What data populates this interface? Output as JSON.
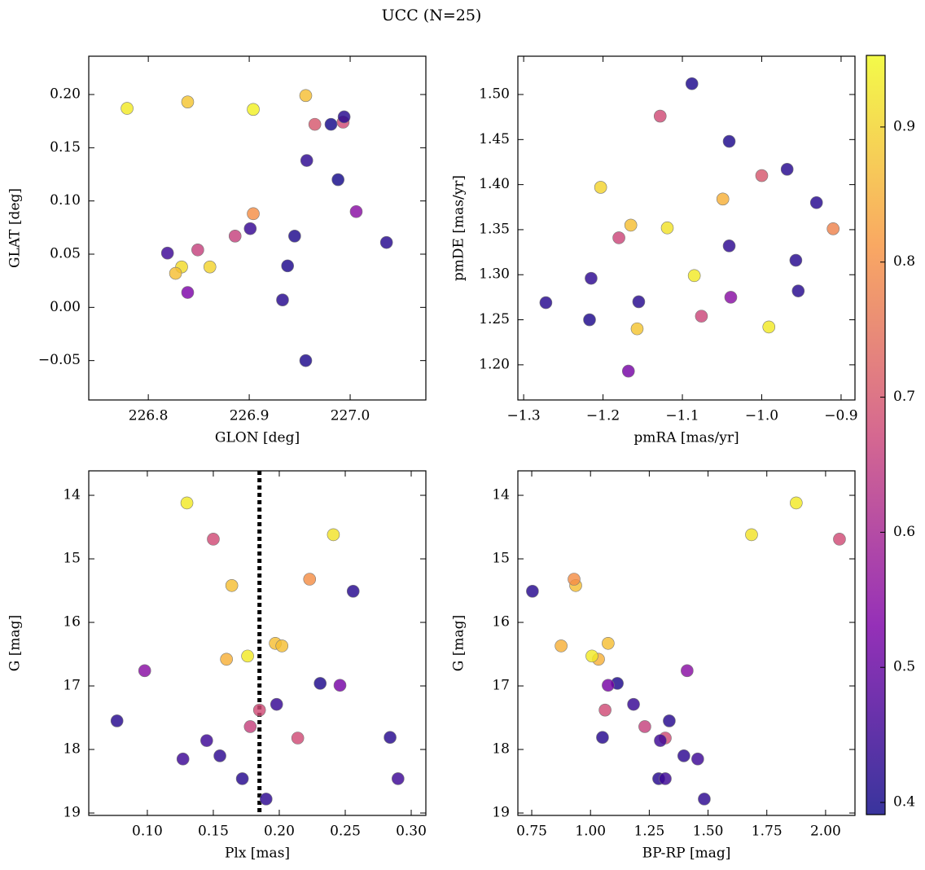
{
  "title": "UCC (N=25)",
  "cmap": "plasma",
  "colorbar": {
    "lim": [
      0.391,
      0.953
    ],
    "ticks": [
      0.4,
      0.5,
      0.6,
      0.7,
      0.8,
      0.9
    ]
  },
  "chart_data": [
    {
      "type": "scatter",
      "xlabel": "GLON [deg]",
      "ylabel": "GLAT [deg]",
      "xlim": [
        226.741,
        227.075
      ],
      "ylim": [
        -0.087,
        0.236
      ],
      "xticks": [
        226.8,
        226.9,
        {
          "value": 227.0,
          "label": "227.0"
        }
      ],
      "yticks": [
        {
          "value": -0.05,
          "label": "−0.05"
        },
        {
          "value": 0,
          "label": "0.00"
        },
        0.05,
        {
          "value": 0.1,
          "label": "0.10"
        },
        0.15,
        {
          "value": 0.2,
          "label": "0.20"
        }
      ],
      "x": [
        226.779,
        226.839,
        226.904,
        226.956,
        226.965,
        226.981,
        226.993,
        226.994,
        226.957,
        226.988,
        227.006,
        226.904,
        226.886,
        226.901,
        226.945,
        227.036,
        226.819,
        226.849,
        226.833,
        226.827,
        226.861,
        226.938,
        226.839,
        226.933,
        226.956
      ],
      "y": [
        0.187,
        0.193,
        0.186,
        0.199,
        0.172,
        0.172,
        0.174,
        0.179,
        0.138,
        0.12,
        0.09,
        0.088,
        0.067,
        0.074,
        0.067,
        0.061,
        0.051,
        0.054,
        0.038,
        0.032,
        0.038,
        0.039,
        0.014,
        0.007,
        -0.05
      ],
      "color_values": [
        0.93,
        0.88,
        0.94,
        0.87,
        0.7,
        0.4,
        0.68,
        0.42,
        0.43,
        0.4,
        0.55,
        0.8,
        0.66,
        0.44,
        0.41,
        0.42,
        0.45,
        0.66,
        0.91,
        0.87,
        0.9,
        0.41,
        0.53,
        0.42,
        0.41
      ]
    },
    {
      "type": "scatter",
      "xlabel": "pmRA [mas/yr]",
      "ylabel": "pmDE [mas/yr]",
      "xlim": [
        -1.3073,
        -0.8825
      ],
      "ylim": [
        1.161,
        1.5425
      ],
      "xticks": [
        {
          "value": -1.3,
          "label": "−1.3"
        },
        {
          "value": -1.2,
          "label": "−1.2"
        },
        {
          "value": -1.1,
          "label": "−1.1"
        },
        {
          "value": -1.0,
          "label": "−1.0"
        },
        {
          "value": -0.9,
          "label": "−0.9"
        }
      ],
      "yticks": [
        {
          "value": 1.2,
          "label": "1.20"
        },
        1.25,
        {
          "value": 1.3,
          "label": "1.30"
        },
        1.35,
        {
          "value": 1.4,
          "label": "1.40"
        },
        1.45,
        {
          "value": 1.5,
          "label": "1.50"
        }
      ],
      "x": [
        -1.088,
        -1.128,
        -1.041,
        -0.968,
        -1.0,
        -1.203,
        -1.049,
        -0.931,
        -1.165,
        -1.119,
        -0.91,
        -1.18,
        -1.041,
        -0.957,
        -1.085,
        -1.215,
        -0.954,
        -1.039,
        -1.272,
        -1.155,
        -1.076,
        -1.217,
        -1.157,
        -0.991,
        -1.168
      ],
      "y": [
        1.512,
        1.476,
        1.448,
        1.417,
        1.41,
        1.397,
        1.384,
        1.38,
        1.355,
        1.352,
        1.351,
        1.341,
        1.332,
        1.316,
        1.299,
        1.296,
        1.282,
        1.275,
        1.269,
        1.27,
        1.254,
        1.25,
        1.24,
        1.242,
        1.193
      ],
      "color_values": [
        0.41,
        0.68,
        0.41,
        0.42,
        0.7,
        0.9,
        0.85,
        0.42,
        0.87,
        0.92,
        0.78,
        0.67,
        0.43,
        0.42,
        0.93,
        0.43,
        0.42,
        0.55,
        0.42,
        0.42,
        0.67,
        0.41,
        0.88,
        0.93,
        0.52
      ]
    },
    {
      "type": "scatter",
      "xlabel": "Plx [mas]",
      "ylabel": "G [mag]",
      "xlim": [
        0.0556,
        0.3111
      ],
      "ylim": [
        19.038,
        13.615
      ],
      "xticks": [
        {
          "value": 0.1,
          "label": "0.10"
        },
        0.15,
        {
          "value": 0.2,
          "label": "0.20"
        },
        0.25,
        {
          "value": 0.3,
          "label": "0.30"
        }
      ],
      "yticks": [
        14,
        15,
        16,
        17,
        18,
        19
      ],
      "vline": 0.185,
      "x": [
        0.13,
        0.15,
        0.241,
        0.164,
        0.223,
        0.256,
        0.197,
        0.202,
        0.16,
        0.176,
        0.098,
        0.231,
        0.246,
        0.198,
        0.185,
        0.077,
        0.178,
        0.214,
        0.284,
        0.145,
        0.127,
        0.155,
        0.172,
        0.29,
        0.19
      ],
      "y": [
        14.12,
        14.69,
        14.62,
        15.42,
        15.32,
        15.51,
        16.33,
        16.37,
        16.58,
        16.53,
        16.76,
        16.96,
        16.99,
        17.29,
        17.38,
        17.55,
        17.64,
        17.82,
        17.81,
        17.86,
        18.15,
        18.1,
        18.46,
        18.46,
        18.78
      ],
      "color_values": [
        0.93,
        0.68,
        0.92,
        0.87,
        0.8,
        0.42,
        0.87,
        0.87,
        0.85,
        0.93,
        0.55,
        0.41,
        0.52,
        0.44,
        0.68,
        0.42,
        0.66,
        0.68,
        0.42,
        0.45,
        0.45,
        0.43,
        0.42,
        0.45,
        0.43
      ]
    },
    {
      "type": "scatter",
      "xlabel": "BP-RP [mag]",
      "ylabel": "G [mag]",
      "xlim": [
        0.691,
        2.125
      ],
      "ylim": [
        19.038,
        13.615
      ],
      "xticks": [
        0.75,
        {
          "value": 1.0,
          "label": "1.00"
        },
        1.25,
        {
          "value": 1.5,
          "label": "1.50"
        },
        1.75,
        {
          "value": 2.0,
          "label": "2.00"
        }
      ],
      "yticks": [
        14,
        15,
        16,
        17,
        18,
        19
      ],
      "x": [
        1.875,
        2.059,
        1.685,
        0.937,
        0.93,
        0.753,
        1.075,
        0.875,
        1.034,
        1.006,
        1.411,
        1.114,
        1.075,
        1.183,
        1.062,
        1.335,
        1.231,
        1.318,
        1.051,
        1.297,
        1.456,
        1.397,
        1.29,
        1.318,
        1.484
      ],
      "y": [
        14.12,
        14.69,
        14.62,
        15.42,
        15.32,
        15.51,
        16.33,
        16.37,
        16.58,
        16.53,
        16.76,
        16.96,
        16.99,
        17.29,
        17.38,
        17.55,
        17.64,
        17.82,
        17.81,
        17.86,
        18.15,
        18.1,
        18.46,
        18.46,
        18.78
      ],
      "color_values": [
        0.93,
        0.68,
        0.92,
        0.87,
        0.8,
        0.42,
        0.87,
        0.85,
        0.85,
        0.93,
        0.55,
        0.41,
        0.52,
        0.44,
        0.68,
        0.42,
        0.66,
        0.68,
        0.42,
        0.45,
        0.45,
        0.43,
        0.42,
        0.45,
        0.43
      ]
    }
  ]
}
